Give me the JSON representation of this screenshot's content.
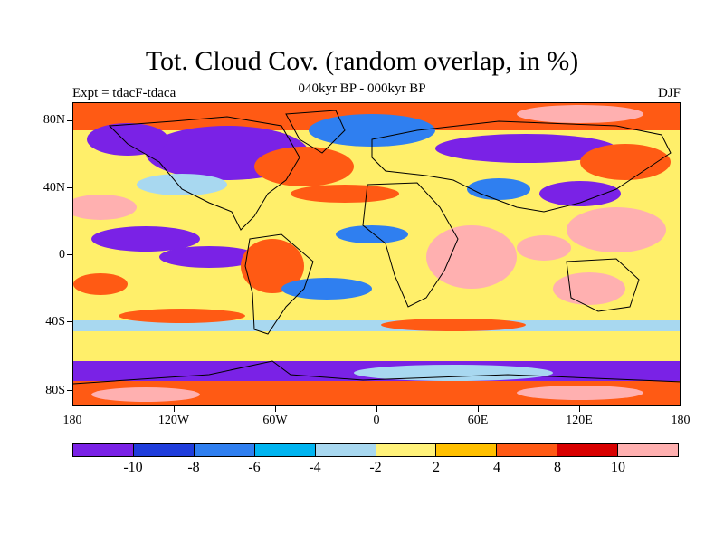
{
  "title": "Tot. Cloud Cov. (random overlap, in %)",
  "subtitle": "040kyr BP - 000kyr BP",
  "experiment": "Expt = tdacF-tdaca",
  "season": "DJF",
  "map": {
    "lat_labels": [
      "80N",
      "40N",
      "0",
      "40S",
      "80S"
    ],
    "lon_labels": [
      "180",
      "120W",
      "60W",
      "0",
      "60E",
      "120E",
      "180"
    ]
  },
  "colorbar": {
    "colors": [
      "#7a22e6",
      "#1f3ddc",
      "#2f7ff0",
      "#00b4f0",
      "#a8d8f0",
      "#fff27a",
      "#ffc000",
      "#ff5a14",
      "#d80000",
      "#ffb0b0"
    ],
    "labels": [
      "-10",
      "-8",
      "-6",
      "-4",
      "-2",
      "2",
      "4",
      "8",
      "10"
    ]
  }
}
